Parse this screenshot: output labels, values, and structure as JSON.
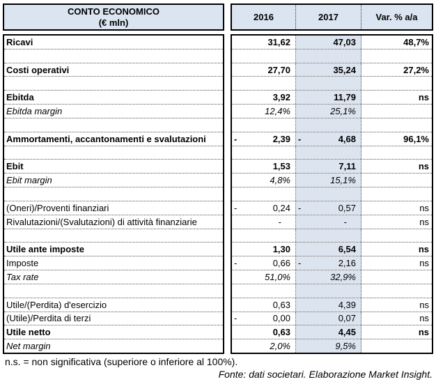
{
  "header": {
    "title_line1": "CONTO ECONOMICO",
    "title_line2": "(€ mln)",
    "col_2016": "2016",
    "col_2017": "2017",
    "col_var": "Var. % a/a"
  },
  "colors": {
    "header_bg": "#dbe5f1",
    "col2017_bg": "#dce4ef",
    "outer_border": "#000000"
  },
  "rows": [
    {
      "label": "Ricavi",
      "style": "bold",
      "c2016": "31,62",
      "n2016": false,
      "c2017": "47,03",
      "n2017": false,
      "cvar": "48,7%"
    },
    {
      "label": "",
      "style": "blank",
      "c2016": "",
      "n2016": false,
      "c2017": "",
      "n2017": false,
      "cvar": ""
    },
    {
      "label": "Costi operativi",
      "style": "bold",
      "c2016": "27,70",
      "n2016": false,
      "c2017": "35,24",
      "n2017": false,
      "cvar": "27,2%"
    },
    {
      "label": "",
      "style": "blank",
      "c2016": "",
      "n2016": false,
      "c2017": "",
      "n2017": false,
      "cvar": ""
    },
    {
      "label": "Ebitda",
      "style": "bold",
      "c2016": "3,92",
      "n2016": false,
      "c2017": "11,79",
      "n2017": false,
      "cvar": "ns"
    },
    {
      "label": "Ebitda margin",
      "style": "italic",
      "c2016": "12,4%",
      "n2016": false,
      "c2017": "25,1%",
      "n2017": false,
      "cvar": ""
    },
    {
      "label": "",
      "style": "blank",
      "c2016": "",
      "n2016": false,
      "c2017": "",
      "n2017": false,
      "cvar": ""
    },
    {
      "label": "Ammortamenti, accantonamenti e svalutazioni",
      "style": "bold",
      "c2016": "2,39",
      "n2016": true,
      "c2017": "4,68",
      "n2017": true,
      "cvar": "96,1%"
    },
    {
      "label": "",
      "style": "blank",
      "c2016": "",
      "n2016": false,
      "c2017": "",
      "n2017": false,
      "cvar": ""
    },
    {
      "label": "Ebit",
      "style": "bold",
      "c2016": "1,53",
      "n2016": false,
      "c2017": "7,11",
      "n2017": false,
      "cvar": "ns"
    },
    {
      "label": "Ebit margin",
      "style": "italic",
      "c2016": "4,8%",
      "n2016": false,
      "c2017": "15,1%",
      "n2017": false,
      "cvar": ""
    },
    {
      "label": "",
      "style": "blank",
      "c2016": "",
      "n2016": false,
      "c2017": "",
      "n2017": false,
      "cvar": ""
    },
    {
      "label": "(Oneri)/Proventi finanziari",
      "style": "normal",
      "c2016": "0,24",
      "n2016": true,
      "c2017": "0,57",
      "n2017": true,
      "cvar": "ns"
    },
    {
      "label": "Rivalutazioni/(Svalutazioni) di attività finanziarie",
      "style": "normal",
      "c2016": "-",
      "n2016": false,
      "c2017": "-",
      "n2017": false,
      "cvar": "ns"
    },
    {
      "label": "",
      "style": "blank",
      "c2016": "",
      "n2016": false,
      "c2017": "",
      "n2017": false,
      "cvar": ""
    },
    {
      "label": "Utile ante imposte",
      "style": "bold",
      "c2016": "1,30",
      "n2016": false,
      "c2017": "6,54",
      "n2017": false,
      "cvar": "ns"
    },
    {
      "label": "Imposte",
      "style": "normal",
      "c2016": "0,66",
      "n2016": true,
      "c2017": "2,16",
      "n2017": true,
      "cvar": "ns"
    },
    {
      "label": "Tax rate",
      "style": "italic",
      "c2016": "51,0%",
      "n2016": false,
      "c2017": "32,9%",
      "n2017": false,
      "cvar": ""
    },
    {
      "label": "",
      "style": "blank",
      "c2016": "",
      "n2016": false,
      "c2017": "",
      "n2017": false,
      "cvar": ""
    },
    {
      "label": "Utile/(Perdita) d'esercizio",
      "style": "normal",
      "c2016": "0,63",
      "n2016": false,
      "c2017": "4,39",
      "n2017": false,
      "cvar": "ns"
    },
    {
      "label": "(Utile)/Perdita di terzi",
      "style": "normal",
      "c2016": "0,00",
      "n2016": true,
      "c2017": "0,07",
      "n2017": false,
      "cvar": "ns"
    },
    {
      "label": "Utile netto",
      "style": "bold",
      "c2016": "0,63",
      "n2016": false,
      "c2017": "4,45",
      "n2017": false,
      "cvar": "ns"
    },
    {
      "label": "Net margin",
      "style": "italic",
      "c2016": "2,0%",
      "n2016": false,
      "c2017": "9,5%",
      "n2017": false,
      "cvar": ""
    }
  ],
  "footnotes": {
    "note": "n.s. = non significativa (superiore o inferiore al 100%).",
    "source": "Fonte: dati societari. Elaborazione Market Insight."
  }
}
